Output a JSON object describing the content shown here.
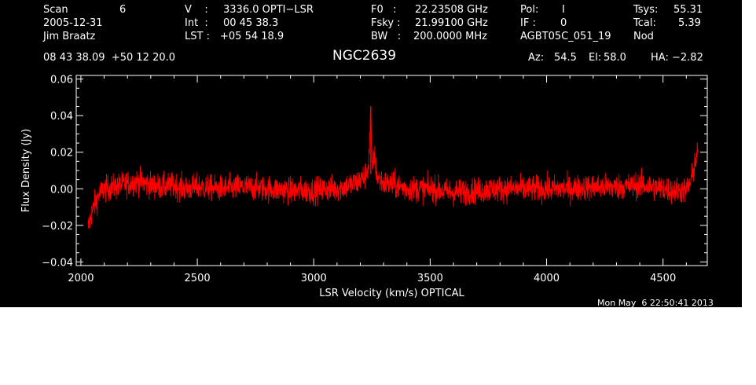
{
  "header": {
    "scan_label": "Scan",
    "scan_value": "6",
    "date": "2005-12-31",
    "observer": "Jim Braatz",
    "v_label": "V    :",
    "v_value": "3336.0 OPTI−LSR",
    "int_label": "Int  :",
    "int_value": "00 45 38.3",
    "lst_label": "LST :",
    "lst_value": "+05 54 18.9",
    "f0_label": "F0   :",
    "f0_value": "22.23508 GHz",
    "fsky_label": "Fsky :",
    "fsky_value": "21.99100 GHz",
    "bw_label": "BW   :",
    "bw_value": "200.0000 MHz",
    "pol_label": "Pol:",
    "pol_value": "I",
    "if_label": "IF :",
    "if_value": "0",
    "project": "AGBT05C_051_19",
    "tsys_label": "Tsys:",
    "tsys_value": "55.31",
    "tcal_label": "Tcal:",
    "tcal_value": "5.39",
    "proc": "Nod",
    "coords": "08 43 38.09  +50 12 20.0",
    "source": "NGC2639",
    "az_label": "Az:",
    "az_value": "54.5",
    "el_label": "El:",
    "el_value": "58.0",
    "ha_label": "HA:",
    "ha_value": "−2.82"
  },
  "timestamp": "Mon May  6 22:50:41 2013",
  "colors": {
    "background": "#000000",
    "axes": "#ffffff",
    "trace": "#ff0000"
  },
  "chart_data": {
    "type": "line",
    "title": "NGC2639",
    "xlabel": "LSR Velocity (km/s) OPTICAL",
    "ylabel": "Flux Density (Jy)",
    "xlim": [
      1980,
      4690
    ],
    "ylim": [
      -0.042,
      0.062
    ],
    "x_ticks": [
      2000,
      2500,
      3000,
      3500,
      4000,
      4500
    ],
    "x_tick_labels": [
      "2000",
      "2500",
      "3000",
      "3500",
      "4000",
      "4500"
    ],
    "y_ticks": [
      -0.04,
      -0.02,
      0.0,
      0.02,
      0.04,
      0.06
    ],
    "y_tick_labels": [
      "−0.04",
      "−0.02",
      "0.00",
      "0.02",
      "0.04",
      "0.06"
    ],
    "grid": false,
    "series": [
      {
        "x": [
          2030,
          2045,
          2060,
          2080,
          2100,
          2150,
          2200,
          2250,
          2300,
          2350,
          2400,
          2450,
          2500,
          2600,
          2700,
          2800,
          2900,
          3000,
          3050,
          3100,
          3150,
          3180,
          3200,
          3220,
          3235,
          3240,
          3245,
          3250,
          3255,
          3260,
          3270,
          3280,
          3300,
          3350,
          3400,
          3500,
          3600,
          3700,
          3800,
          3900,
          4000,
          4100,
          4200,
          4300,
          4400,
          4500,
          4550,
          4600,
          4620,
          4630,
          4640,
          4650
        ],
        "y": [
          -0.022,
          -0.014,
          -0.008,
          -0.003,
          0.0,
          0.001,
          0.003,
          0.004,
          0.002,
          0.001,
          0.002,
          0.0,
          0.001,
          0.0,
          0.001,
          0.0,
          -0.001,
          -0.001,
          0.0,
          0.0,
          0.002,
          0.003,
          0.005,
          0.007,
          0.012,
          0.025,
          0.043,
          0.012,
          0.015,
          0.019,
          0.008,
          0.005,
          0.003,
          0.002,
          0.0,
          0.0,
          -0.002,
          -0.001,
          0.0,
          0.0,
          0.0,
          0.0,
          0.001,
          0.001,
          0.002,
          0.0,
          -0.001,
          -0.001,
          0.004,
          0.01,
          0.016,
          0.019
        ]
      }
    ]
  }
}
